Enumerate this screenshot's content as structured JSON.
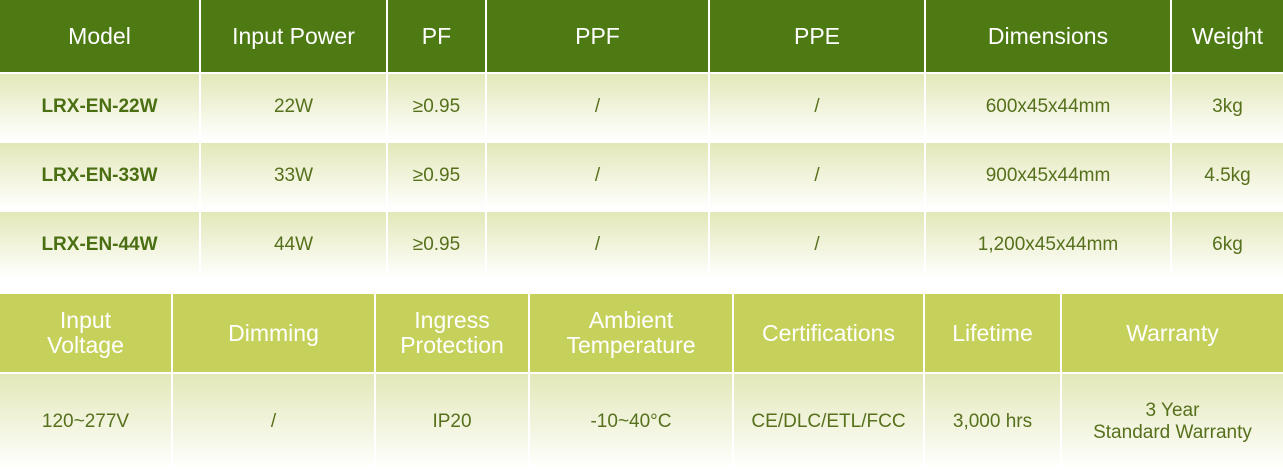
{
  "table1": {
    "headers": [
      "Model",
      "Input Power",
      "PF",
      "PPF",
      "PPE",
      "Dimensions",
      "Weight"
    ],
    "rows": [
      [
        "LRX-EN-22W",
        "22W",
        "≥0.95",
        "/",
        "/",
        "600x45x44mm",
        "3kg"
      ],
      [
        "LRX-EN-33W",
        "33W",
        "≥0.95",
        "/",
        "/",
        "900x45x44mm",
        "4.5kg"
      ],
      [
        "LRX-EN-44W",
        "44W",
        "≥0.95",
        "/",
        "/",
        "1,200x45x44mm",
        "6kg"
      ]
    ]
  },
  "table2": {
    "headers": [
      [
        "Input",
        "Voltage"
      ],
      [
        "Dimming"
      ],
      [
        "Ingress",
        "Protection"
      ],
      [
        "Ambient",
        "Temperature"
      ],
      [
        "Certifications"
      ],
      [
        "Lifetime"
      ],
      [
        "Warranty"
      ]
    ],
    "rows": [
      [
        [
          "120~277V"
        ],
        [
          "/"
        ],
        [
          "IP20"
        ],
        [
          "-10~40°C"
        ],
        [
          "CE/DLC/ETL/FCC"
        ],
        [
          "3,000 hrs"
        ],
        [
          "3 Year",
          "Standard Warranty"
        ]
      ]
    ]
  }
}
